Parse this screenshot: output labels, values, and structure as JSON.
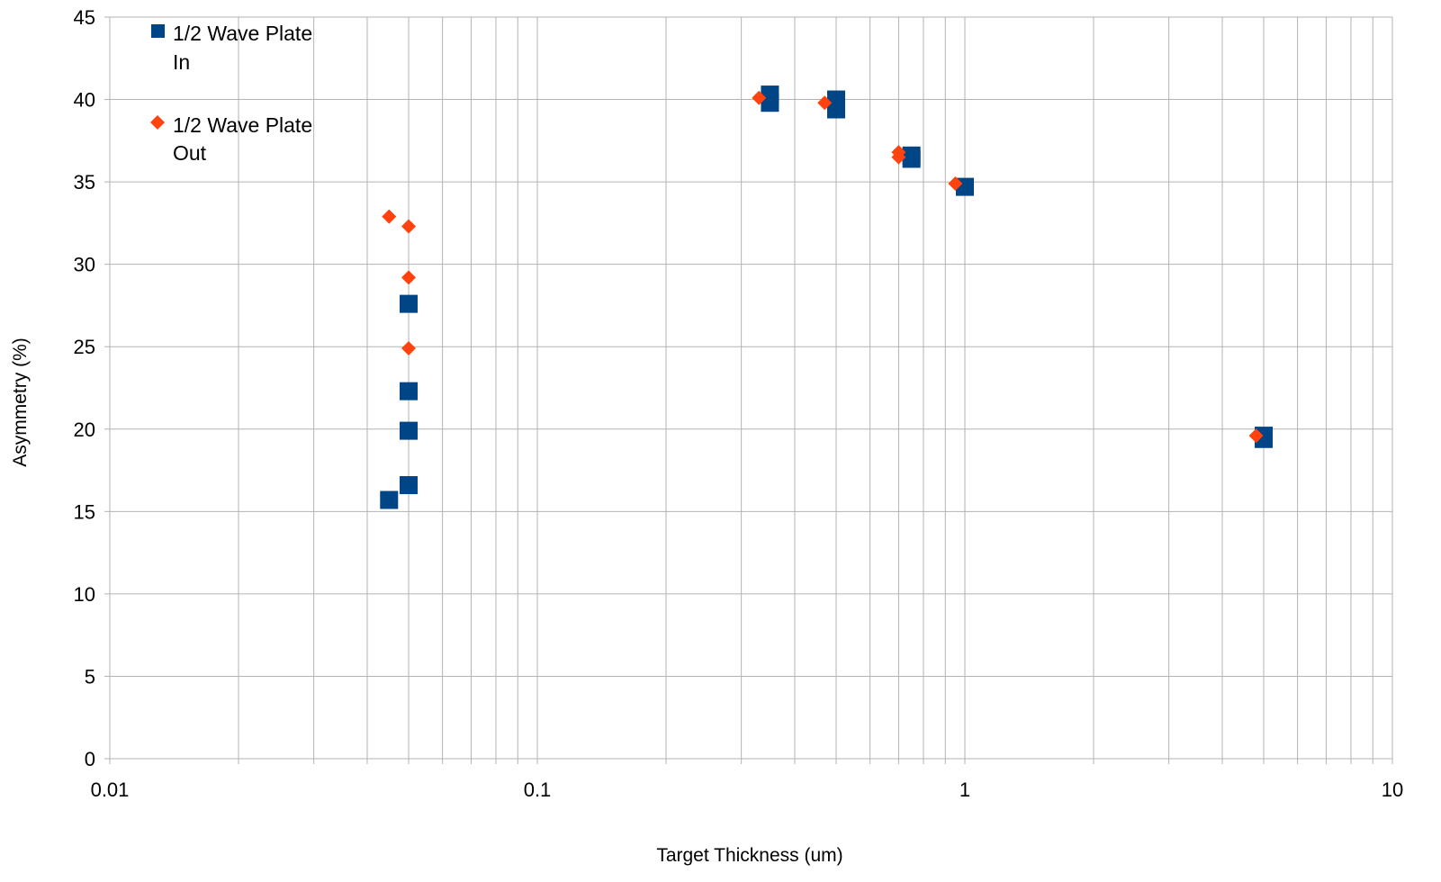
{
  "chart_data": {
    "type": "scatter",
    "title": "",
    "xlabel": "Target Thickness (um)",
    "ylabel": "Asymmetry (%)",
    "x_scale": "log",
    "xlim": [
      0.01,
      10
    ],
    "ylim": [
      0,
      45
    ],
    "x_ticks": [
      "0.01",
      "0.1",
      "1",
      "10"
    ],
    "y_ticks": [
      "0",
      "5",
      "10",
      "15",
      "20",
      "25",
      "30",
      "35",
      "40",
      "45"
    ],
    "grid": true,
    "legend_position": "top-left",
    "series": [
      {
        "name": "1/2 Wave Plate In",
        "marker": "square",
        "color": "#004586",
        "points": [
          {
            "x": 0.045,
            "y": 15.7,
            "err": 0.7
          },
          {
            "x": 0.05,
            "y": 16.6,
            "err": 1.0
          },
          {
            "x": 0.05,
            "y": 19.9,
            "err": 0.5
          },
          {
            "x": 0.05,
            "y": 22.3,
            "err": 0.7
          },
          {
            "x": 0.05,
            "y": 27.6,
            "err": 0.2
          },
          {
            "x": 0.35,
            "y": 39.8,
            "err": 0.2
          },
          {
            "x": 0.35,
            "y": 40.3,
            "err": 0.2
          },
          {
            "x": 0.5,
            "y": 39.4,
            "err": 0.2
          },
          {
            "x": 0.5,
            "y": 40.0,
            "err": 0.2
          },
          {
            "x": 0.75,
            "y": 36.4,
            "err": 0.2
          },
          {
            "x": 0.75,
            "y": 36.6,
            "err": 0.2
          },
          {
            "x": 1.0,
            "y": 34.7,
            "err": 0.1
          },
          {
            "x": 5.0,
            "y": 19.4,
            "err": 0.1
          },
          {
            "x": 5.0,
            "y": 19.6,
            "err": 0.1
          }
        ]
      },
      {
        "name": "1/2 Wave Plate Out",
        "marker": "diamond",
        "color": "#ff420e",
        "points": [
          {
            "x": 0.045,
            "y": 32.9,
            "err": 0.3
          },
          {
            "x": 0.05,
            "y": 32.3,
            "err": 0.3
          },
          {
            "x": 0.05,
            "y": 29.2,
            "err": 0.5
          },
          {
            "x": 0.05,
            "y": 24.9,
            "err": 0.4
          },
          {
            "x": 0.33,
            "y": 40.1,
            "err": 0.2
          },
          {
            "x": 0.47,
            "y": 39.8,
            "err": 0.2
          },
          {
            "x": 0.7,
            "y": 36.5,
            "err": 0.2
          },
          {
            "x": 0.7,
            "y": 36.8,
            "err": 0.2
          },
          {
            "x": 0.95,
            "y": 34.9,
            "err": 0.1
          },
          {
            "x": 4.8,
            "y": 19.6,
            "err": 0.1
          }
        ]
      }
    ]
  },
  "legend": {
    "in_label_line1": "1/2 Wave Plate",
    "in_label_line2": "In",
    "out_label_line1": "1/2 Wave Plate",
    "out_label_line2": "Out"
  }
}
